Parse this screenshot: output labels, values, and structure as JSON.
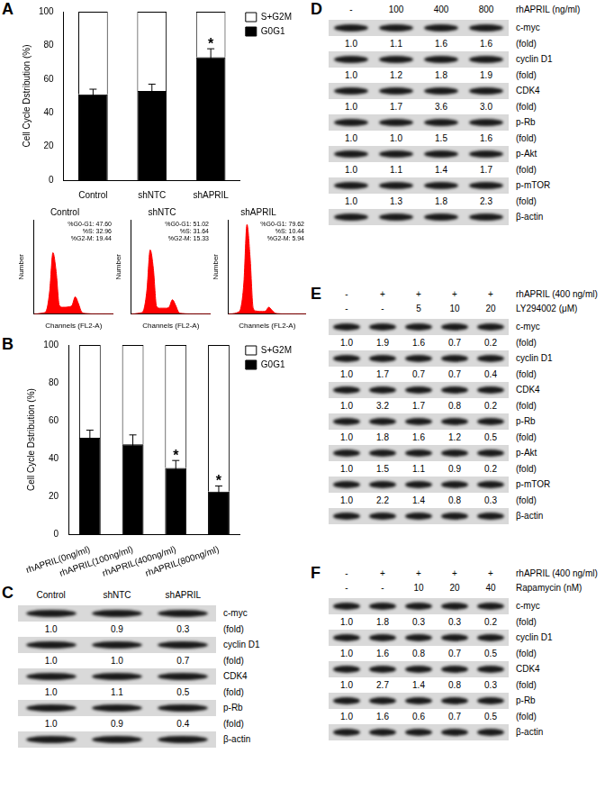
{
  "panel_labels": [
    "A",
    "B",
    "C",
    "D",
    "E",
    "F"
  ],
  "chart_data": [
    {
      "type": "bar",
      "stacked": true,
      "grid": false,
      "legend": "right",
      "categories": [
        "Control",
        "shNTC",
        "shAPRIL"
      ],
      "series": [
        {
          "name": "G0G1",
          "color": "#000000",
          "values": [
            51,
            53,
            73
          ],
          "errors": [
            3,
            4,
            5
          ]
        },
        {
          "name": "S+G2M",
          "color": "#ffffff",
          "values": [
            49,
            47,
            27
          ]
        }
      ],
      "y_label": "Cell Cycle Dstribution (%)",
      "ylim": [
        0,
        100
      ],
      "yticks": [
        0,
        20,
        40,
        60,
        80,
        100
      ],
      "annotations": [
        {
          "category": "shAPRIL",
          "text": "*"
        }
      ]
    },
    {
      "type": "area",
      "title": "Control",
      "grid": false,
      "tick_labels": false,
      "color": "#ff0000",
      "x": [
        0,
        10,
        20,
        30,
        40,
        50,
        60,
        70,
        80,
        90,
        100,
        110,
        120,
        130,
        140,
        150,
        160,
        170,
        180,
        190,
        200,
        210,
        220,
        230,
        240,
        250
      ],
      "values": [
        0,
        0,
        5,
        10,
        40,
        250,
        650,
        450,
        90,
        70,
        70,
        75,
        90,
        180,
        110,
        20,
        5,
        2,
        0,
        0,
        0,
        0,
        0,
        0,
        0,
        0
      ],
      "xlim": [
        0,
        250
      ],
      "ylim": [
        0,
        1000
      ],
      "x_label": "Channels (FL2-A)",
      "y_label": "Number",
      "annotations": [
        {
          "text": "%G0-G1: 47.60"
        },
        {
          "text": "%S: 32.96"
        },
        {
          "text": "%G2-M: 19.44"
        }
      ]
    },
    {
      "type": "area",
      "title": "shNTC",
      "grid": false,
      "tick_labels": false,
      "color": "#ff0000",
      "x": [
        0,
        10,
        20,
        30,
        40,
        50,
        60,
        70,
        80,
        90,
        100,
        110,
        120,
        130,
        140,
        150,
        160,
        170,
        180,
        190,
        200,
        210,
        220,
        230,
        240,
        250
      ],
      "values": [
        0,
        0,
        5,
        10,
        45,
        260,
        680,
        480,
        80,
        60,
        60,
        60,
        75,
        150,
        90,
        15,
        4,
        1,
        0,
        0,
        0,
        0,
        0,
        0,
        0,
        0
      ],
      "xlim": [
        0,
        250
      ],
      "ylim": [
        0,
        1000
      ],
      "x_label": "Channels (FL2-A)",
      "y_label": "Number",
      "annotations": [
        {
          "text": "%G0-G1: 51.02"
        },
        {
          "text": "%S: 31.64"
        },
        {
          "text": "%G2-M: 15.33"
        }
      ]
    },
    {
      "type": "area",
      "title": "shAPRIL",
      "grid": false,
      "tick_labels": false,
      "color": "#ff0000",
      "x": [
        0,
        10,
        20,
        30,
        40,
        50,
        60,
        70,
        80,
        90,
        100,
        110,
        120,
        130,
        140,
        150,
        160,
        170,
        180,
        190,
        200,
        210,
        220,
        230,
        240,
        250
      ],
      "values": [
        0,
        0,
        5,
        15,
        60,
        330,
        950,
        600,
        60,
        30,
        25,
        25,
        30,
        70,
        40,
        8,
        2,
        0,
        0,
        0,
        0,
        0,
        0,
        0,
        0,
        0
      ],
      "xlim": [
        0,
        250
      ],
      "ylim": [
        0,
        1000
      ],
      "x_label": "Channels (FL2-A)",
      "y_label": "Number",
      "annotations": [
        {
          "text": "%G0-G1: 79.62"
        },
        {
          "text": "%S: 10.44"
        },
        {
          "text": "%G2-M: 5.94"
        }
      ]
    },
    {
      "type": "bar",
      "stacked": true,
      "grid": false,
      "legend": "right",
      "categories": [
        "rhAPRIL(0ng/ml)",
        "rhAPRIL(100ng/ml)",
        "rhAPRIL(400ng/ml)",
        "rhAPRIL(800ng/ml)"
      ],
      "series": [
        {
          "name": "G0G1",
          "color": "#000000",
          "values": [
            51,
            47.5,
            35,
            22.5
          ],
          "errors": [
            4,
            5,
            4,
            3
          ]
        },
        {
          "name": "S+G2M",
          "color": "#ffffff",
          "values": [
            49,
            52.5,
            65,
            77.5
          ]
        }
      ],
      "y_label": "Cell Cycle Dstribution (%)",
      "ylim": [
        0,
        100
      ],
      "yticks": [
        0,
        20,
        40,
        60,
        80,
        100
      ],
      "annotations": [
        {
          "category": "rhAPRIL(400ng/ml)",
          "text": "*"
        },
        {
          "category": "rhAPRIL(800ng/ml)",
          "text": "*"
        }
      ]
    }
  ],
  "blots": [
    {
      "fold_label": "(fold)",
      "treatments": [
        {
          "values": [
            "Control",
            "shNTC",
            "shAPRIL"
          ]
        }
      ],
      "rows": [
        {
          "protein": "c-myc",
          "folds": [
            "1.0",
            "0.9",
            "0.3"
          ]
        },
        {
          "protein": "cyclin D1",
          "folds": [
            "1.0",
            "1.0",
            "0.7"
          ]
        },
        {
          "protein": "CDK4",
          "folds": [
            "1.0",
            "1.1",
            "0.5"
          ]
        },
        {
          "protein": "p-Rb",
          "folds": [
            "1.0",
            "0.9",
            "0.4"
          ]
        },
        {
          "protein": "β-actin"
        }
      ]
    },
    {
      "fold_label": "(fold)",
      "treatments": [
        {
          "name": "rhAPRIL (ng/ml)",
          "values": [
            "-",
            "100",
            "400",
            "800"
          ]
        }
      ],
      "rows": [
        {
          "protein": "c-myc",
          "folds": [
            "1.0",
            "1.1",
            "1.6",
            "1.6"
          ]
        },
        {
          "protein": "cyclin D1",
          "folds": [
            "1.0",
            "1.2",
            "1.8",
            "1.9"
          ]
        },
        {
          "protein": "CDK4",
          "folds": [
            "1.0",
            "1.7",
            "3.6",
            "3.0"
          ]
        },
        {
          "protein": "p-Rb",
          "folds": [
            "1.0",
            "1.0",
            "1.5",
            "1.6"
          ]
        },
        {
          "protein": "p-Akt",
          "folds": [
            "1.0",
            "1.1",
            "1.4",
            "1.7"
          ]
        },
        {
          "protein": "p-mTOR",
          "folds": [
            "1.0",
            "1.3",
            "1.8",
            "2.3"
          ]
        },
        {
          "protein": "β-actin"
        }
      ]
    },
    {
      "fold_label": "(fold)",
      "treatments": [
        {
          "name": "rhAPRIL (400 ng/ml)",
          "values": [
            "-",
            "+",
            "+",
            "+",
            "+"
          ]
        },
        {
          "name": "LY294002 (μM)",
          "values": [
            "-",
            "-",
            "5",
            "10",
            "20"
          ]
        }
      ],
      "rows": [
        {
          "protein": "c-myc",
          "folds": [
            "1.0",
            "1.9",
            "1.6",
            "0.7",
            "0.2"
          ]
        },
        {
          "protein": "cyclin D1",
          "folds": [
            "1.0",
            "1.7",
            "0.7",
            "0.7",
            "0.4"
          ]
        },
        {
          "protein": "CDK4",
          "folds": [
            "1.0",
            "3.2",
            "1.7",
            "0.8",
            "0.2"
          ]
        },
        {
          "protein": "p-Rb",
          "folds": [
            "1.0",
            "1.8",
            "1.6",
            "1.2",
            "0.5"
          ]
        },
        {
          "protein": "p-Akt",
          "folds": [
            "1.0",
            "1.5",
            "1.1",
            "0.9",
            "0.2"
          ]
        },
        {
          "protein": "p-mTOR",
          "folds": [
            "1.0",
            "2.2",
            "1.4",
            "0.8",
            "0.3"
          ]
        },
        {
          "protein": "β-actin"
        }
      ]
    },
    {
      "fold_label": "(fold)",
      "treatments": [
        {
          "name": "rhAPRIL (400 ng/ml)",
          "values": [
            "-",
            "+",
            "+",
            "+",
            "+"
          ]
        },
        {
          "name": "Rapamycin (nM)",
          "values": [
            "-",
            "-",
            "10",
            "20",
            "40"
          ]
        }
      ],
      "rows": [
        {
          "protein": "c-myc",
          "folds": [
            "1.0",
            "1.8",
            "0.3",
            "0.3",
            "0.2"
          ]
        },
        {
          "protein": "cyclin D1",
          "folds": [
            "1.0",
            "1.6",
            "0.8",
            "0.7",
            "0.5"
          ]
        },
        {
          "protein": "CDK4",
          "folds": [
            "1.0",
            "2.7",
            "1.4",
            "0.8",
            "0.3"
          ]
        },
        {
          "protein": "p-Rb",
          "folds": [
            "1.0",
            "1.6",
            "0.6",
            "0.7",
            "0.5"
          ]
        },
        {
          "protein": "β-actin"
        }
      ]
    }
  ]
}
